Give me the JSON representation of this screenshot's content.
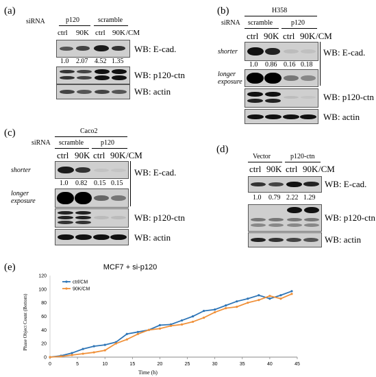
{
  "panel_a": {
    "label": "(a)",
    "sirna_label": "siRNA",
    "groups": [
      "p120",
      "scramble"
    ],
    "lanes": [
      "ctrl",
      "90K",
      "ctrl",
      "90K"
    ],
    "cm": "/CM",
    "quant": [
      "1.0",
      "2.07",
      "4.52",
      "1.35"
    ],
    "wb": [
      "WB: E-cad.",
      "WB: p120-ctn",
      "WB: actin"
    ]
  },
  "panel_b": {
    "label": "(b)",
    "cell_line": "H358",
    "sirna_label": "siRNA",
    "groups": [
      "scramble",
      "p120"
    ],
    "lanes": [
      "ctrl",
      "90K",
      "ctrl",
      "90K"
    ],
    "cm": "/CM",
    "shorter": "shorter",
    "longer": [
      "longer",
      "exposure"
    ],
    "quant": [
      "1.0",
      "0.86",
      "0.16",
      "0.18"
    ],
    "wb": [
      "WB: E-cad.",
      "WB: p120-ctn",
      "WB: actin"
    ]
  },
  "panel_c": {
    "label": "(c)",
    "cell_line": "Caco2",
    "sirna_label": "siRNA",
    "groups": [
      "scramble",
      "p120"
    ],
    "lanes": [
      "ctrl",
      "90K",
      "ctrl",
      "90K"
    ],
    "cm": "/CM",
    "shorter": "shorter",
    "longer": [
      "longer",
      "exposure"
    ],
    "quant": [
      "1.0",
      "0.82",
      "0.15",
      "0.15"
    ],
    "wb": [
      "WB: E-cad.",
      "WB: p120-ctn",
      "WB: actin"
    ]
  },
  "panel_d": {
    "label": "(d)",
    "groups": [
      "Vector",
      "p120-ctn"
    ],
    "lanes": [
      "ctrl",
      "90K",
      "ctrl",
      "90K"
    ],
    "cm": "/CM",
    "quant": [
      "1.0",
      "0.79",
      "2.22",
      "1.29"
    ],
    "wb": [
      "WB: E-cad.",
      "WB: p120-ctn",
      "WB: actin"
    ]
  },
  "panel_e": {
    "label": "(e)",
    "colors": {
      "ctrl": "#2e75b6",
      "k90": "#f0913a"
    },
    "chart_data": {
      "type": "line",
      "title": "MCF7 + si-p120",
      "xlabel": "Time (h)",
      "ylabel": "Phase Object Count (Bottom)",
      "xlim": [
        0,
        45
      ],
      "ylim": [
        0,
        120
      ],
      "xticks": [
        0,
        5,
        10,
        15,
        20,
        25,
        30,
        35,
        40,
        45
      ],
      "yticks": [
        0,
        20,
        40,
        60,
        80,
        100,
        120
      ],
      "legend_position": "top-left",
      "series": [
        {
          "name": "ctrl/CM",
          "x": [
            0,
            2,
            4,
            6,
            8,
            10,
            12,
            14,
            16,
            18,
            20,
            22,
            24,
            26,
            28,
            30,
            32,
            34,
            36,
            38,
            40,
            42,
            44
          ],
          "y": [
            0,
            2,
            6,
            12,
            16,
            18,
            22,
            34,
            37,
            40,
            47,
            48,
            54,
            60,
            68,
            70,
            76,
            82,
            86,
            91,
            86,
            91,
            97
          ]
        },
        {
          "name": "90K/CM",
          "x": [
            0,
            2,
            4,
            6,
            8,
            10,
            12,
            14,
            16,
            18,
            20,
            22,
            24,
            26,
            28,
            30,
            32,
            34,
            36,
            38,
            40,
            42,
            44
          ],
          "y": [
            0,
            1,
            3,
            5,
            7,
            10,
            20,
            26,
            34,
            40,
            42,
            46,
            48,
            52,
            58,
            66,
            72,
            74,
            80,
            84,
            90,
            86,
            93
          ]
        }
      ]
    }
  }
}
